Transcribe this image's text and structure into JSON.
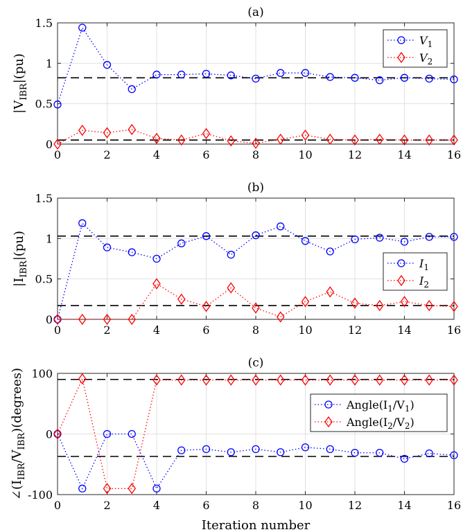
{
  "chart_data": [
    {
      "type": "line",
      "title": "(a)",
      "xlabel": "",
      "ylabel": {
        "main": "|V",
        "sub": "IBR",
        "tail": "|(pu)"
      },
      "xlim": [
        0,
        16
      ],
      "ylim": [
        0,
        1.5
      ],
      "xticks": [
        0,
        2,
        4,
        6,
        8,
        10,
        12,
        14,
        16
      ],
      "xtick_labels": [
        "0",
        "2",
        "4",
        "6",
        "8",
        "10",
        "12",
        "14",
        "16"
      ],
      "yticks": [
        0,
        0.5,
        1,
        1.5
      ],
      "ytick_labels": [
        "0",
        "0.5",
        "1",
        "1.5"
      ],
      "grid": true,
      "legend_position": "top-right",
      "x": [
        0,
        1,
        2,
        3,
        4,
        5,
        6,
        7,
        8,
        9,
        10,
        11,
        12,
        13,
        14,
        15,
        16
      ],
      "series": [
        {
          "name": "V",
          "name_sub": "1",
          "color": "#0000ff",
          "marker": "circle",
          "values": [
            0.49,
            1.44,
            0.98,
            0.68,
            0.86,
            0.86,
            0.87,
            0.85,
            0.81,
            0.88,
            0.88,
            0.83,
            0.82,
            0.79,
            0.82,
            0.81,
            0.8
          ]
        },
        {
          "name": "V",
          "name_sub": "2",
          "color": "#ff0000",
          "marker": "diamond",
          "values": [
            0.0,
            0.17,
            0.14,
            0.18,
            0.07,
            0.05,
            0.13,
            0.04,
            0.01,
            0.06,
            0.11,
            0.06,
            0.05,
            0.06,
            0.05,
            0.05,
            0.05
          ]
        }
      ],
      "reference_lines": [
        0.82,
        0.05
      ]
    },
    {
      "type": "line",
      "title": "(b)",
      "xlabel": "",
      "ylabel": {
        "main": "|I",
        "sub": "IBR",
        "tail": "|(pu)"
      },
      "xlim": [
        0,
        16
      ],
      "ylim": [
        0,
        1.5
      ],
      "xticks": [
        0,
        2,
        4,
        6,
        8,
        10,
        12,
        14,
        16
      ],
      "xtick_labels": [
        "0",
        "2",
        "4",
        "6",
        "8",
        "10",
        "12",
        "14",
        "16"
      ],
      "yticks": [
        0,
        0.5,
        1,
        1.5
      ],
      "ytick_labels": [
        "0",
        "0.5",
        "1",
        "1.5"
      ],
      "grid": true,
      "legend_position": "right",
      "x": [
        0,
        1,
        2,
        3,
        4,
        5,
        6,
        7,
        8,
        9,
        10,
        11,
        12,
        13,
        14,
        15,
        16
      ],
      "series": [
        {
          "name": "I",
          "name_sub": "1",
          "color": "#0000ff",
          "marker": "circle",
          "values": [
            0.0,
            1.19,
            0.89,
            0.83,
            0.75,
            0.94,
            1.03,
            0.8,
            1.04,
            1.15,
            0.97,
            0.84,
            0.99,
            1.01,
            0.96,
            1.02,
            1.02
          ]
        },
        {
          "name": "I",
          "name_sub": "2",
          "color": "#ff0000",
          "marker": "diamond",
          "values": [
            0.0,
            0.0,
            0.0,
            0.0,
            0.44,
            0.25,
            0.16,
            0.39,
            0.14,
            0.03,
            0.22,
            0.34,
            0.2,
            0.17,
            0.22,
            0.17,
            0.16
          ]
        }
      ],
      "reference_lines": [
        1.03,
        0.17
      ]
    },
    {
      "type": "line",
      "title": "(c)",
      "xlabel": "Iteration number",
      "ylabel": {
        "main": "∠(I",
        "sub": "IBR",
        "mid": "/V",
        "sub2": "IBR",
        "tail": ")(degrees)"
      },
      "xlim": [
        0,
        16
      ],
      "ylim": [
        -100,
        100
      ],
      "xticks": [
        0,
        2,
        4,
        6,
        8,
        10,
        12,
        14,
        16
      ],
      "xtick_labels": [
        "0",
        "2",
        "4",
        "6",
        "8",
        "10",
        "12",
        "14",
        "16"
      ],
      "yticks": [
        -100,
        0,
        100
      ],
      "ytick_labels": [
        "-100",
        "0",
        "100"
      ],
      "grid": true,
      "legend_position": "right",
      "x": [
        0,
        1,
        2,
        3,
        4,
        5,
        6,
        7,
        8,
        9,
        10,
        11,
        12,
        13,
        14,
        15,
        16
      ],
      "series": [
        {
          "name": "Angle(I",
          "name_sub": "1",
          "name_mid": "/V",
          "name_sub2": "1",
          "name_end": ")",
          "color": "#0000ff",
          "marker": "circle",
          "values": [
            0,
            -90,
            0,
            0,
            -90,
            -27,
            -25,
            -30,
            -25,
            -30,
            -22,
            -25,
            -31,
            -31,
            -41,
            -32,
            -35
          ]
        },
        {
          "name": "Angle(I",
          "name_sub": "2",
          "name_mid": "/V",
          "name_sub2": "2",
          "name_end": ")",
          "color": "#ff0000",
          "marker": "diamond",
          "values": [
            0,
            91,
            -90,
            -90,
            89,
            89,
            89,
            89,
            89,
            89,
            89,
            89,
            89,
            89,
            89,
            89,
            89
          ]
        }
      ],
      "reference_lines": [
        90,
        -37
      ]
    }
  ]
}
